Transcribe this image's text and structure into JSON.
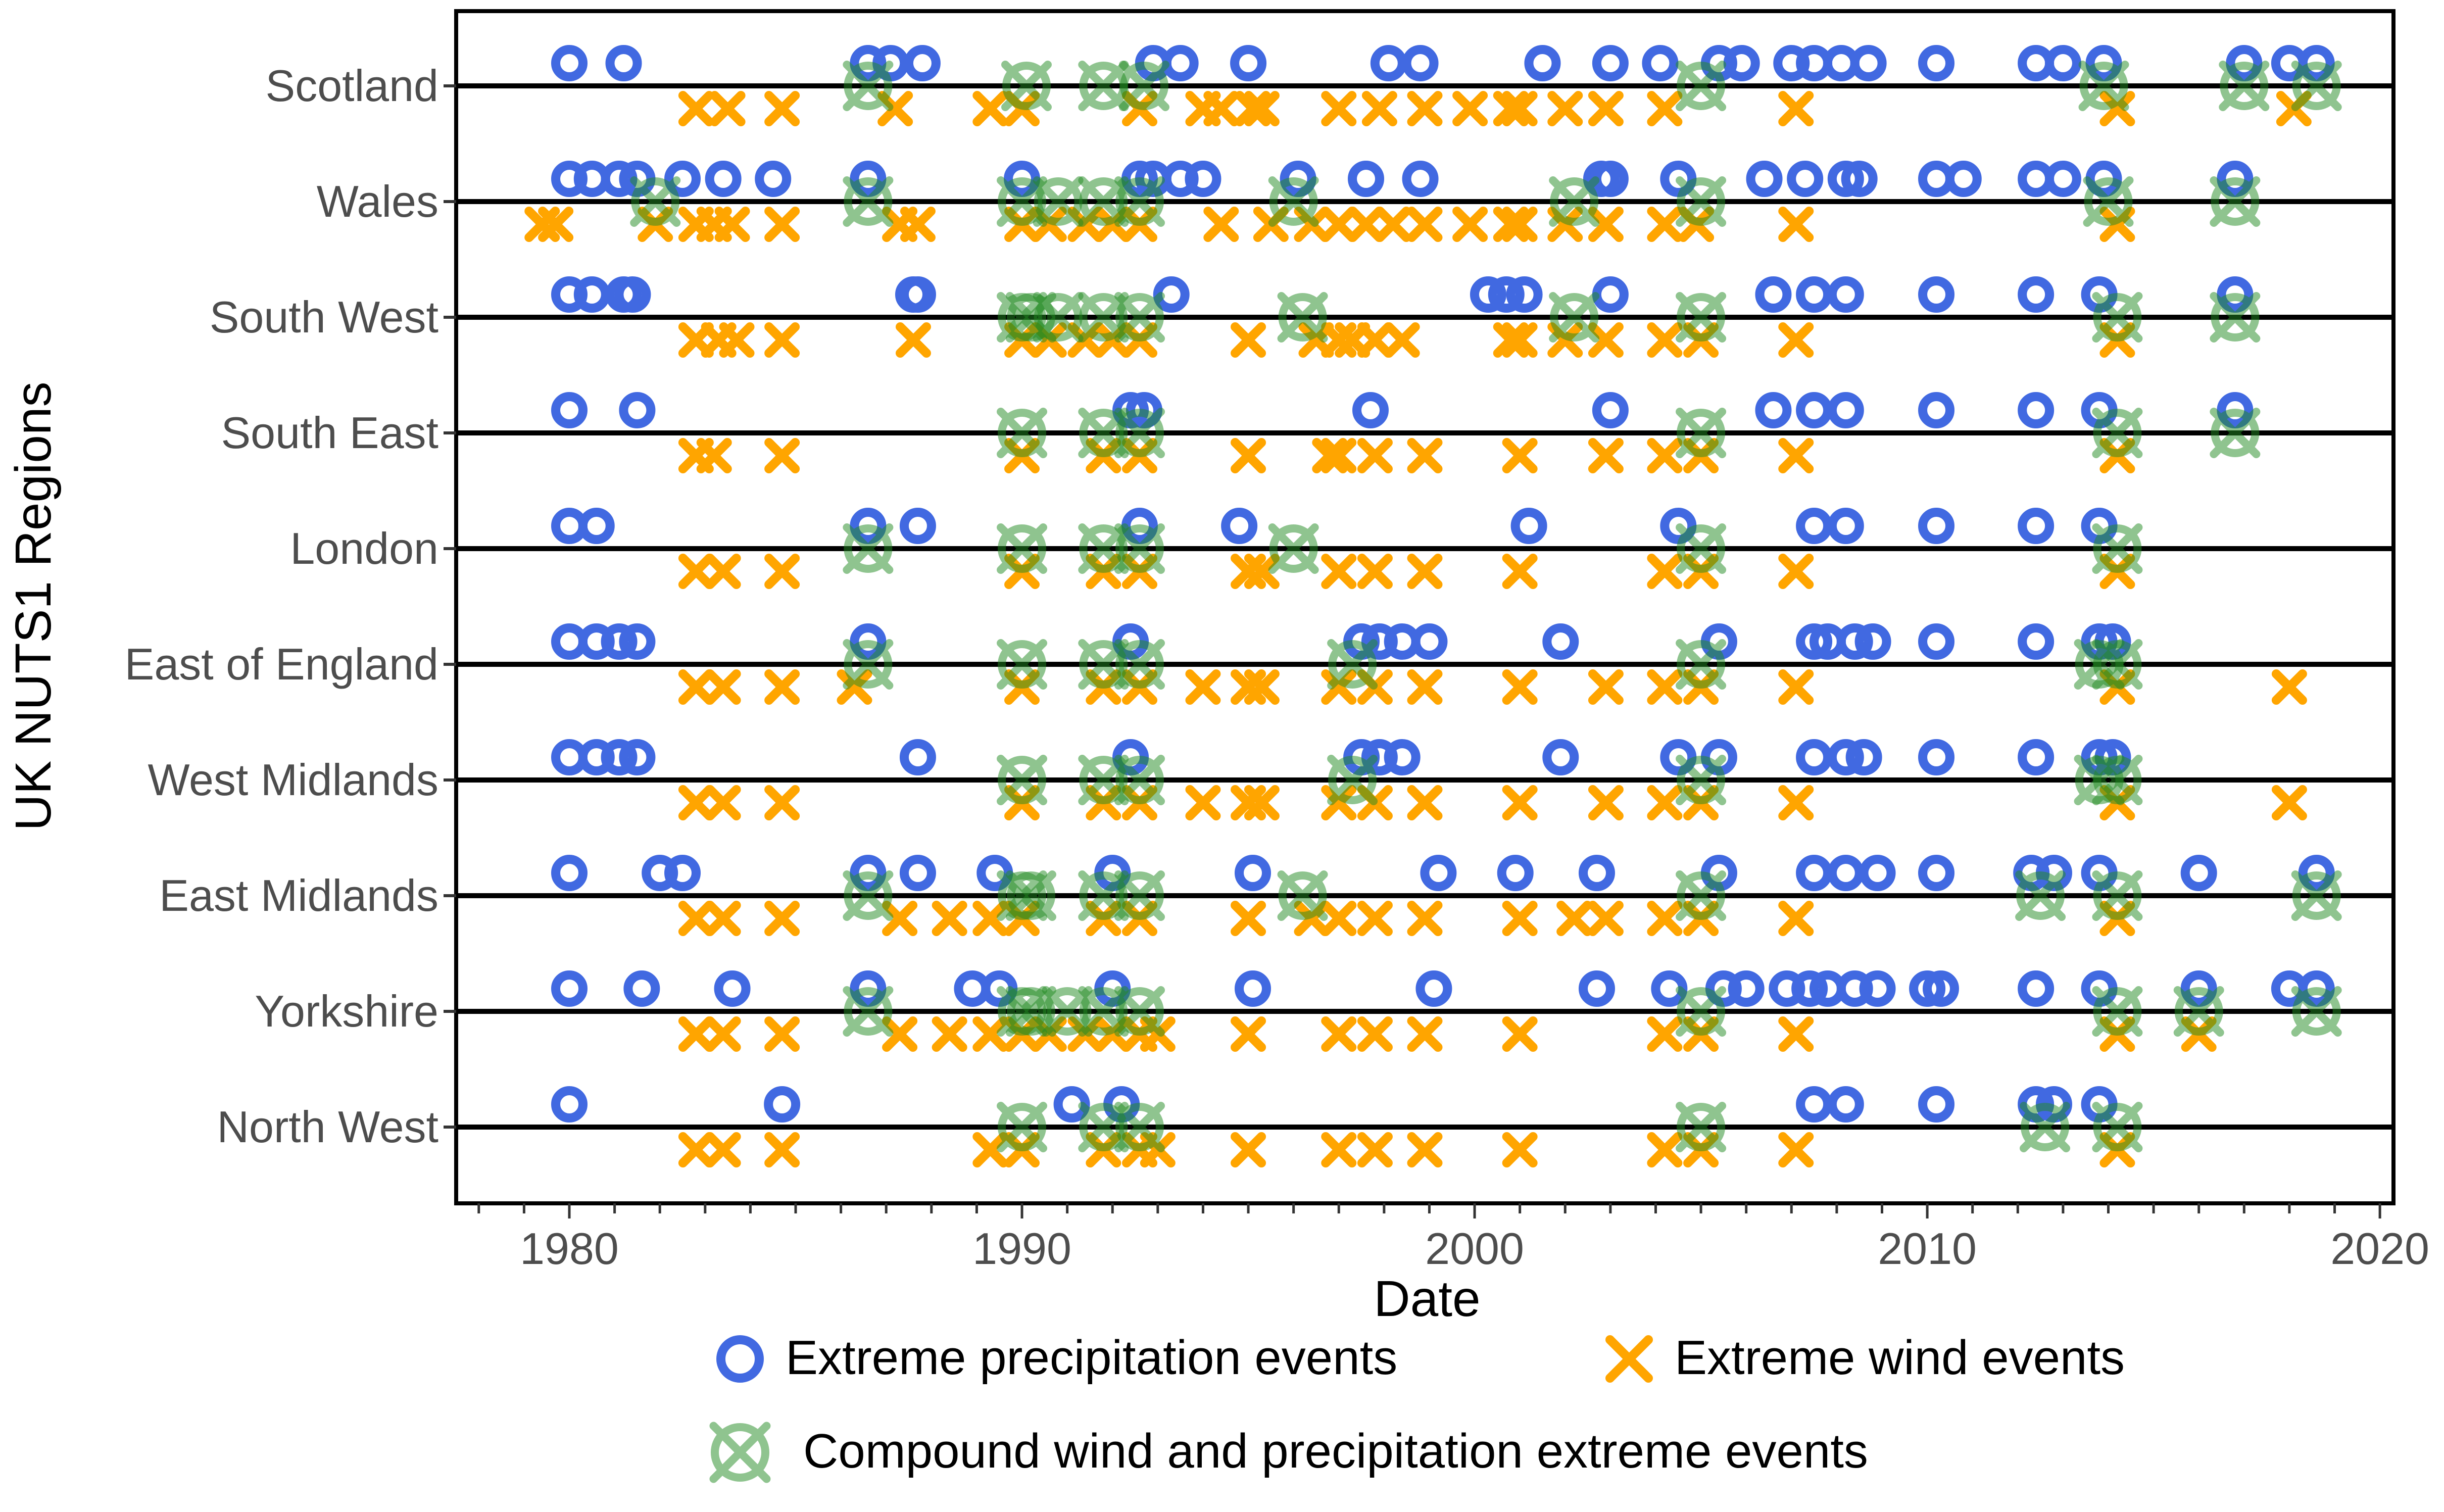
{
  "chart_data": {
    "type": "scatter",
    "title": "",
    "xlabel": "Date",
    "ylabel": "UK NUTS1 Regions",
    "xlim": [
      1977.5,
      2020.3
    ],
    "xticks": [
      1980,
      1990,
      2000,
      2010,
      2020
    ],
    "xtick_labels": [
      "1980",
      "1990",
      "2000",
      "2010",
      "2020"
    ],
    "grid": false,
    "legend_position": "bottom",
    "legend": [
      {
        "key": "precip",
        "label": "Extreme precipitation events",
        "color": "#4169E1"
      },
      {
        "key": "wind",
        "label": "Extreme wind events",
        "color": "#FFA500"
      },
      {
        "key": "compound",
        "label": "Compound wind and precipitation extreme events",
        "color": "#228B22"
      }
    ],
    "regions": [
      {
        "name": "Scotland",
        "precip": [
          1980.0,
          1981.2,
          1986.6,
          1987.1,
          1987.8,
          1992.9,
          1993.5,
          1995.0,
          1998.1,
          1998.8,
          2001.5,
          2003.0,
          2004.1,
          2005.4,
          2005.9,
          2007.0,
          2007.5,
          2008.1,
          2008.7,
          2010.2,
          2012.4,
          2013.0,
          2013.9,
          2017.0,
          2018.0,
          2018.6
        ],
        "wind": [
          1982.8,
          1983.5,
          1984.7,
          1987.2,
          1989.3,
          1990.0,
          1992.6,
          1994.0,
          1994.4,
          1995.1,
          1995.3,
          1997.0,
          1997.9,
          1998.9,
          1999.9,
          2000.8,
          2001.0,
          2002.0,
          2002.9,
          2004.2,
          2007.1,
          2014.2,
          2018.1
        ],
        "compound": [
          1986.6,
          1990.1,
          1991.8,
          1992.7,
          2005.0,
          2013.9,
          2017.0,
          2018.6
        ]
      },
      {
        "name": "Wales",
        "precip": [
          1980.0,
          1980.5,
          1981.1,
          1981.5,
          1982.5,
          1983.4,
          1984.5,
          1986.6,
          1990.0,
          1992.6,
          1992.9,
          1993.5,
          1994.0,
          1996.1,
          1997.6,
          1998.8,
          2002.8,
          2003.0,
          2004.5,
          2006.4,
          2007.3,
          2008.2,
          2008.5,
          2010.2,
          2010.8,
          2012.4,
          2013.0,
          2013.9,
          2016.8
        ],
        "wind": [
          1979.4,
          1979.7,
          1981.9,
          1982.8,
          1983.2,
          1983.6,
          1984.7,
          1987.3,
          1987.7,
          1990.0,
          1990.6,
          1991.4,
          1992.0,
          1992.6,
          1994.4,
          1995.5,
          1996.4,
          1997.0,
          1997.6,
          1998.2,
          1998.9,
          1999.9,
          2000.8,
          2001.0,
          2002.0,
          2002.9,
          2004.2,
          2004.9,
          2007.1,
          2014.2
        ],
        "compound": [
          1981.9,
          1986.6,
          1990.0,
          1990.8,
          1991.8,
          1992.6,
          1996.0,
          2002.2,
          2005.0,
          2014.0,
          2016.8
        ]
      },
      {
        "name": "South West",
        "precip": [
          1980.0,
          1980.5,
          1981.2,
          1981.4,
          1987.6,
          1987.7,
          1993.3,
          2000.3,
          2000.7,
          2001.1,
          2003.0,
          2006.6,
          2007.5,
          2008.2,
          2010.2,
          2012.4,
          2013.8,
          2016.8
        ],
        "wind": [
          1982.8,
          1983.3,
          1983.7,
          1984.7,
          1987.6,
          1990.0,
          1990.6,
          1991.4,
          1992.0,
          1992.6,
          1995.0,
          1996.5,
          1997.0,
          1997.3,
          1997.8,
          1998.4,
          2000.8,
          2001.0,
          2002.0,
          2002.9,
          2004.2,
          2005.0,
          2007.1,
          2014.2
        ],
        "compound": [
          1990.0,
          1990.2,
          1990.8,
          1991.8,
          1992.6,
          1996.2,
          2002.2,
          2005.0,
          2014.2,
          2016.8
        ]
      },
      {
        "name": "South East",
        "precip": [
          1980.0,
          1981.5,
          1992.4,
          1992.7,
          1997.7,
          2003.0,
          2006.6,
          2007.5,
          2008.2,
          2010.2,
          2012.4,
          2013.8,
          2016.8
        ],
        "wind": [
          1982.8,
          1983.2,
          1984.7,
          1990.0,
          1991.8,
          1992.6,
          1995.0,
          1996.8,
          1997.0,
          1997.8,
          1998.9,
          2001.0,
          2002.9,
          2004.2,
          2005.0,
          2007.1,
          2014.2
        ],
        "compound": [
          1990.0,
          1991.8,
          1992.6,
          2005.0,
          2014.2,
          2016.8
        ]
      },
      {
        "name": "London",
        "precip": [
          1980.0,
          1980.6,
          1986.6,
          1987.7,
          1992.6,
          1994.8,
          2001.2,
          2004.5,
          2007.5,
          2008.2,
          2010.2,
          2012.4,
          2013.8
        ],
        "wind": [
          1982.8,
          1983.4,
          1984.7,
          1990.0,
          1991.8,
          1992.6,
          1995.0,
          1995.3,
          1997.0,
          1997.8,
          1998.9,
          2001.0,
          2004.2,
          2005.0,
          2007.1,
          2014.2
        ],
        "compound": [
          1986.6,
          1990.0,
          1991.8,
          1992.6,
          1996.0,
          2005.0,
          2014.2
        ]
      },
      {
        "name": "East of England",
        "precip": [
          1980.0,
          1980.6,
          1981.1,
          1981.5,
          1986.6,
          1992.4,
          1997.5,
          1997.9,
          1998.4,
          1999.0,
          2001.9,
          2005.4,
          2007.5,
          2007.8,
          2008.4,
          2008.8,
          2010.2,
          2012.4,
          2013.8,
          2014.1
        ],
        "wind": [
          1982.8,
          1983.4,
          1984.7,
          1986.3,
          1990.0,
          1991.8,
          1992.6,
          1994.0,
          1995.0,
          1995.3,
          1997.0,
          1997.8,
          1998.9,
          2001.0,
          2002.9,
          2004.2,
          2005.0,
          2007.1,
          2014.2,
          2018.0
        ],
        "compound": [
          1986.6,
          1990.0,
          1991.8,
          1992.6,
          1997.3,
          2005.0,
          2013.8,
          2014.2
        ]
      },
      {
        "name": "West Midlands",
        "precip": [
          1980.0,
          1980.6,
          1981.1,
          1981.5,
          1987.7,
          1992.4,
          1997.5,
          1997.9,
          1998.4,
          2001.9,
          2004.5,
          2005.4,
          2007.5,
          2008.2,
          2008.6,
          2010.2,
          2012.4,
          2013.8,
          2014.1
        ],
        "wind": [
          1982.8,
          1983.4,
          1984.7,
          1990.0,
          1991.8,
          1992.6,
          1994.0,
          1995.0,
          1995.3,
          1997.0,
          1997.8,
          1998.9,
          2001.0,
          2002.9,
          2004.2,
          2005.0,
          2007.1,
          2014.2,
          2018.0
        ],
        "compound": [
          1990.0,
          1991.8,
          1992.6,
          1997.3,
          2005.0,
          2013.8,
          2014.2
        ]
      },
      {
        "name": "East Midlands",
        "precip": [
          1980.0,
          1982.0,
          1982.5,
          1986.6,
          1987.7,
          1989.4,
          1992.0,
          1995.1,
          1999.2,
          2000.9,
          2002.7,
          2005.4,
          2007.5,
          2008.2,
          2008.9,
          2010.2,
          2012.3,
          2012.8,
          2013.8,
          2016.0,
          2018.6
        ],
        "wind": [
          1982.8,
          1983.4,
          1984.7,
          1987.3,
          1988.4,
          1989.3,
          1990.0,
          1991.8,
          1992.6,
          1995.0,
          1996.4,
          1997.0,
          1997.8,
          1998.9,
          2001.0,
          2002.2,
          2002.9,
          2004.2,
          2005.0,
          2007.1,
          2014.2
        ],
        "compound": [
          1986.6,
          1990.0,
          1990.2,
          1991.8,
          1992.6,
          1996.2,
          2005.0,
          2012.5,
          2014.2,
          2018.6
        ]
      },
      {
        "name": "Yorkshire",
        "precip": [
          1980.0,
          1981.6,
          1983.6,
          1986.6,
          1988.9,
          1989.5,
          1992.0,
          1995.1,
          1999.1,
          2002.7,
          2004.3,
          2005.5,
          2006.0,
          2006.9,
          2007.4,
          2007.8,
          2008.4,
          2008.9,
          2010.0,
          2010.3,
          2012.4,
          2013.8,
          2016.0,
          2018.0,
          2018.6
        ],
        "wind": [
          1982.8,
          1983.4,
          1984.7,
          1987.3,
          1988.4,
          1989.3,
          1990.0,
          1990.6,
          1991.4,
          1992.0,
          1992.6,
          1993.0,
          1995.0,
          1997.0,
          1997.8,
          1998.9,
          2001.0,
          2004.2,
          2005.0,
          2007.1,
          2014.2,
          2016.0
        ],
        "compound": [
          1986.6,
          1990.0,
          1990.2,
          1991.0,
          1991.8,
          1992.6,
          2005.0,
          2014.2,
          2016.0,
          2018.6
        ]
      },
      {
        "name": "North West",
        "precip": [
          1980.0,
          1984.7,
          1991.1,
          1992.2,
          2007.5,
          2008.2,
          2010.2,
          2012.4,
          2012.8,
          2013.8
        ],
        "wind": [
          1982.8,
          1983.4,
          1984.7,
          1989.3,
          1990.0,
          1991.8,
          1992.6,
          1993.0,
          1995.0,
          1997.0,
          1997.8,
          1998.9,
          2001.0,
          2004.2,
          2005.0,
          2007.1,
          2014.2
        ],
        "compound": [
          1990.0,
          1991.8,
          1992.6,
          2005.0,
          2012.6,
          2014.2
        ]
      }
    ]
  }
}
